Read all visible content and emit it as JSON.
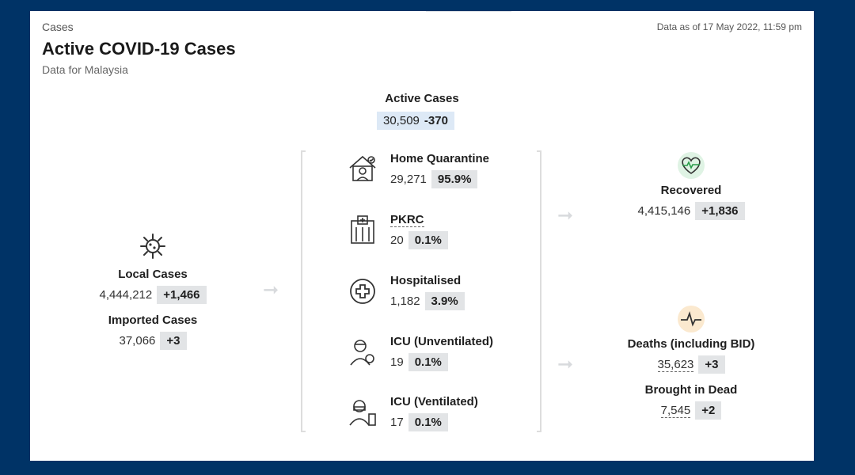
{
  "header": {
    "crumb": "Cases",
    "title": "Active COVID-19 Cases",
    "subtitle": "Data for Malaysia",
    "date": "Data as of 17 May 2022, 11:59 pm"
  },
  "active": {
    "label": "Active Cases",
    "value": "30,509",
    "delta": "-370"
  },
  "local": {
    "label": "Local Cases",
    "value": "4,444,212",
    "delta": "+1,466",
    "icon": "virus-icon"
  },
  "imported": {
    "label": "Imported Cases",
    "value": "37,066",
    "delta": "+3"
  },
  "middle": [
    {
      "label": "Home Quarantine",
      "value": "29,271",
      "pct": "95.9%",
      "icon": "home-quarantine-icon"
    },
    {
      "label": "PKRC",
      "value": "20",
      "pct": "0.1%",
      "icon": "building-icon"
    },
    {
      "label": "Hospitalised",
      "value": "1,182",
      "pct": "3.9%",
      "icon": "medical-cross-icon"
    },
    {
      "label": "ICU (Unventilated)",
      "value": "19",
      "pct": "0.1%",
      "icon": "icu-patient-icon"
    },
    {
      "label": "ICU (Ventilated)",
      "value": "17",
      "pct": "0.1%",
      "icon": "ventilator-icon"
    }
  ],
  "recovered": {
    "label": "Recovered",
    "value": "4,415,146",
    "delta": "+1,836",
    "icon": "heart-pulse-icon",
    "icon_bg": "#dff3e4"
  },
  "deaths": {
    "label": "Deaths (including BID)",
    "value": "35,623",
    "delta": "+3",
    "icon": "pulse-line-icon",
    "icon_bg": "#fbe9cf"
  },
  "bid": {
    "label": "Brought in Dead",
    "value": "7,545",
    "delta": "+2"
  }
}
